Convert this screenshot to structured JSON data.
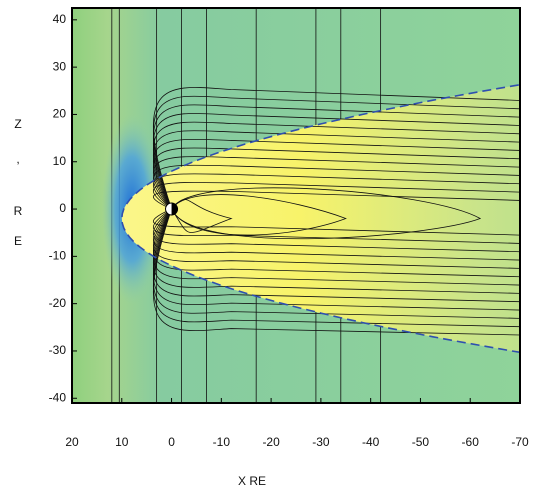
{
  "chart_data": {
    "type": "field-map",
    "xlabel": "X RE",
    "ylabel_lines": [
      "Z",
      ",",
      "R",
      "E"
    ],
    "xlim": [
      20,
      -70
    ],
    "xticks": [
      20,
      10,
      0,
      -10,
      -20,
      -30,
      -40,
      -50,
      -60,
      -70
    ],
    "ylim": [
      -41,
      42.5
    ],
    "yticks": [
      -40,
      -30,
      -20,
      -10,
      0,
      10,
      20,
      30,
      40
    ]
  }
}
